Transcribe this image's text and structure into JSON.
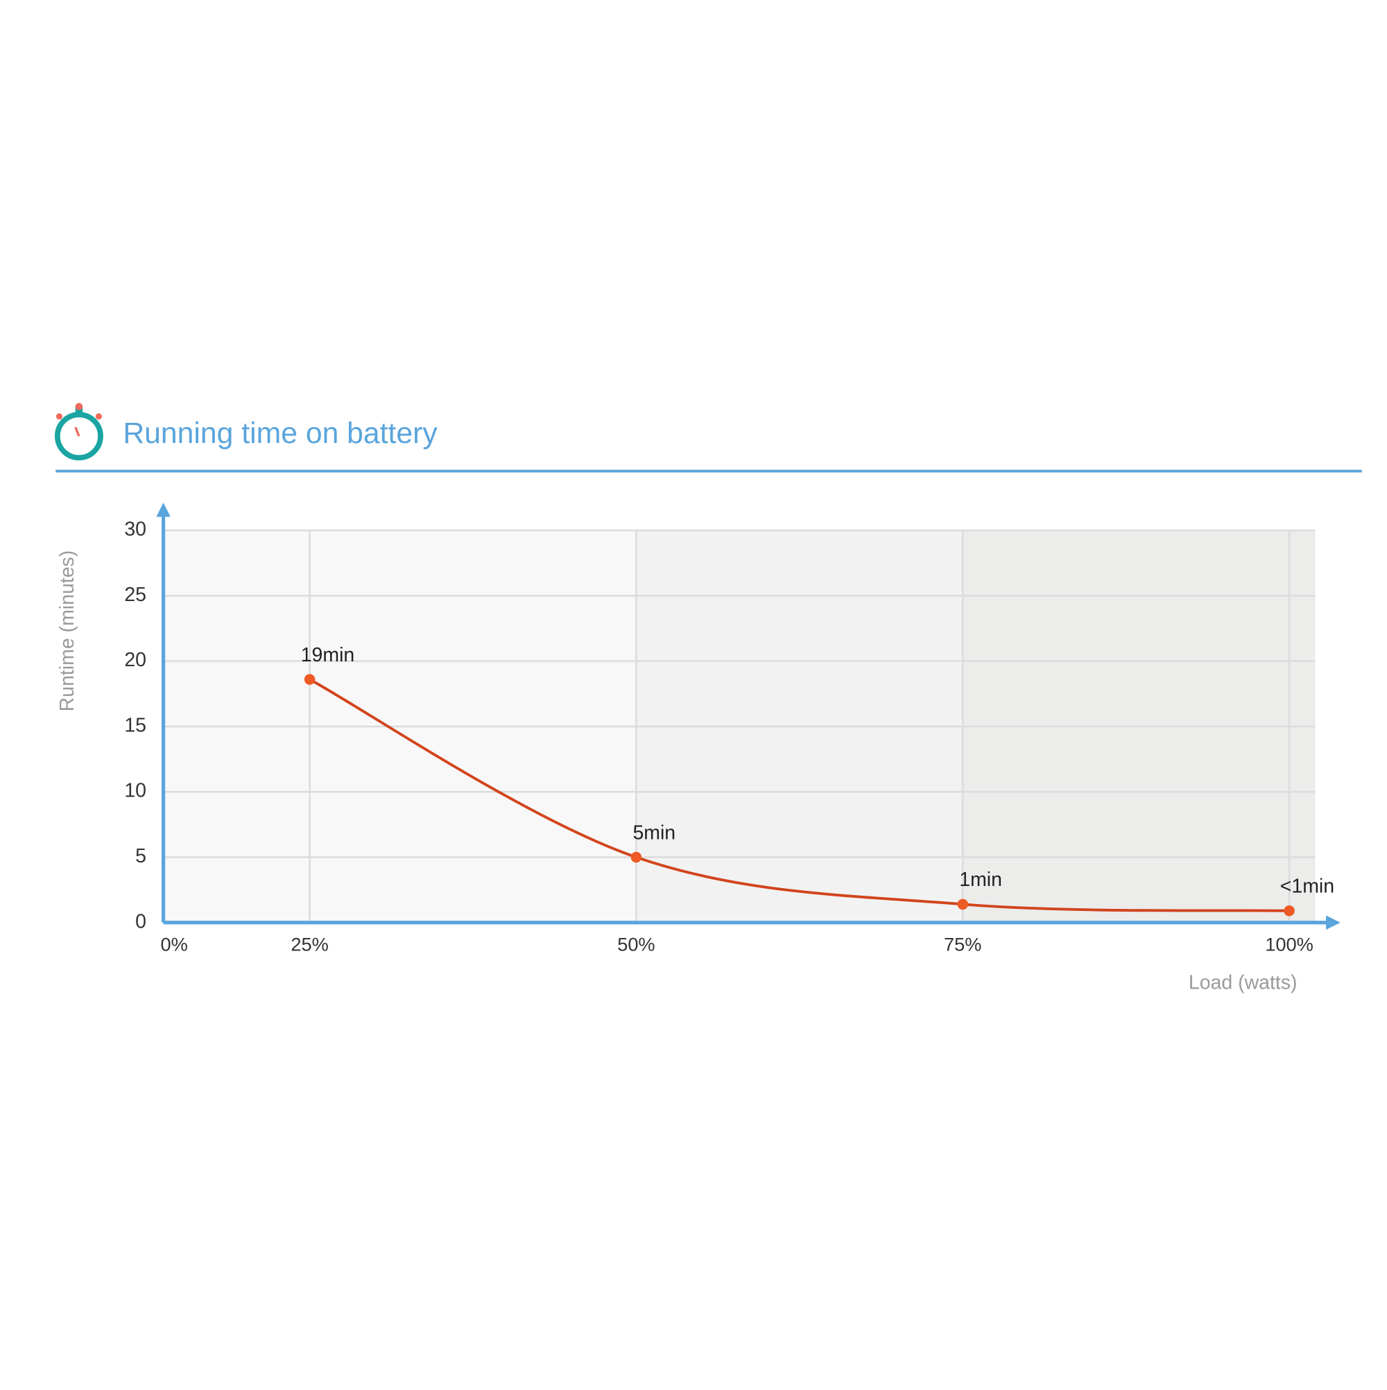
{
  "chart_data": {
    "type": "line",
    "title": "Running time on battery",
    "y_label": "Runtime (minutes)",
    "x_label": "Load (watts)",
    "categories": [
      "0%",
      "25%",
      "50%",
      "75%",
      "100%"
    ],
    "series": [
      {
        "name": "Runtime",
        "color": "#d2441c",
        "values": [
          null,
          18.6,
          5,
          1.4,
          0.9
        ],
        "value_labels": [
          null,
          "19min",
          "5min",
          "1min",
          "<1min"
        ]
      }
    ],
    "ylim": [
      0,
      30
    ],
    "yticks": [
      0,
      5,
      10,
      15,
      20,
      25,
      30
    ],
    "grid": true
  }
}
